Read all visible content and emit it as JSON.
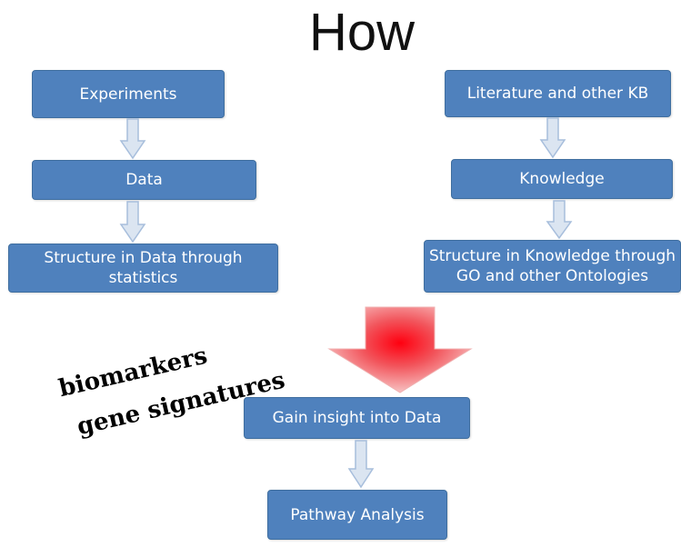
{
  "title": "How",
  "left_column": {
    "experiments": "Experiments",
    "data": "Data",
    "structure": "Structure in Data through statistics"
  },
  "right_column": {
    "literature": "Literature and other KB",
    "knowledge": "Knowledge",
    "structure": "Structure in Knowledge through GO and other Ontologies"
  },
  "bottom": {
    "insight": "Gain insight into Data",
    "pathway": "Pathway Analysis"
  },
  "annotation": {
    "line1": "biomarkers",
    "line2": "gene signatures"
  },
  "colors": {
    "box_fill": "#4f81bd",
    "big_arrow": "#e8202a"
  }
}
